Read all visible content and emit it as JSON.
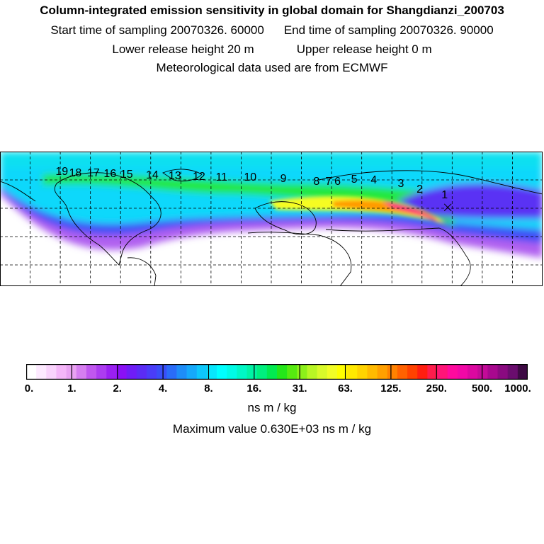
{
  "header": {
    "title": "Column-integrated emission sensitivity in global domain for Shangdianzi_200703",
    "start_time": "Start time of sampling 20070326. 60000",
    "end_time": "End time of sampling 20070326. 90000",
    "lower_release": "Lower release height   20 m",
    "upper_release": "Upper release height    0 m",
    "met_data": "Meteorological data used are from ECMWF"
  },
  "map": {
    "labels": [
      "1",
      "2",
      "3",
      "4",
      "5",
      "6",
      "7",
      "8",
      "9",
      "10",
      "11",
      "12",
      "13",
      "14",
      "15",
      "16",
      "17",
      "18",
      "19"
    ],
    "label_points": [
      {
        "lon": 115.0,
        "lat": 47.0
      },
      {
        "lon": 98.5,
        "lat": 51.0
      },
      {
        "lon": 86.0,
        "lat": 55.0
      },
      {
        "lon": 68.0,
        "lat": 57.5
      },
      {
        "lon": 55.0,
        "lat": 58.0
      },
      {
        "lon": 44.0,
        "lat": 56.5
      },
      {
        "lon": 38.0,
        "lat": 56.5
      },
      {
        "lon": 30.0,
        "lat": 56.5
      },
      {
        "lon": 8.0,
        "lat": 58.5
      },
      {
        "lon": -14.0,
        "lat": 59.5
      },
      {
        "lon": -33.0,
        "lat": 59.5
      },
      {
        "lon": -48.0,
        "lat": 60.0
      },
      {
        "lon": -64.0,
        "lat": 60.5
      },
      {
        "lon": -79.0,
        "lat": 61.0
      },
      {
        "lon": -96.0,
        "lat": 61.5
      },
      {
        "lon": -107.0,
        "lat": 62.0
      },
      {
        "lon": -118.0,
        "lat": 62.5
      },
      {
        "lon": -130.0,
        "lat": 62.5
      },
      {
        "lon": -139.0,
        "lat": 63.5
      }
    ],
    "station": {
      "lon": 117.1,
      "lat": 40.6
    }
  },
  "colorbar": {
    "tick_labels": [
      "0.",
      "1.",
      "2.",
      "4.",
      "8.",
      "16.",
      "31.",
      "63.",
      "125.",
      "250.",
      "500.",
      "1000."
    ],
    "colors": [
      "#ffffff",
      "#fdeaff",
      "#f9d3fc",
      "#f4b6f8",
      "#e9a2f2",
      "#d67ef0",
      "#c057ef",
      "#ac3cf0",
      "#9a20f2",
      "#8a10f5",
      "#6f1df6",
      "#5b2cf5",
      "#4a3df8",
      "#3a4ef8",
      "#2a6cf8",
      "#1e8df8",
      "#16a9fb",
      "#0ec7fc",
      "#08e6fd",
      "#00ffff",
      "#00fbe6",
      "#00f7c6",
      "#00f3a5",
      "#00ef7e",
      "#02ea50",
      "#24e61a",
      "#56ea10",
      "#8cf01a",
      "#b8f624",
      "#d9fa2a",
      "#f2fd26",
      "#ffff00",
      "#ffe900",
      "#ffd300",
      "#ffba00",
      "#ffa000",
      "#ff8200",
      "#ff6200",
      "#ff4200",
      "#ff1e10",
      "#ff1c4c",
      "#ff1478",
      "#ff0a9e",
      "#f208a6",
      "#dc08a0",
      "#c40a98",
      "#a8088e",
      "#8a0a80",
      "#6a0d6e",
      "#3e0a44"
    ],
    "unit": "ns m / kg",
    "max_value": "Maximum value  0.630E+03 ns m / kg"
  }
}
